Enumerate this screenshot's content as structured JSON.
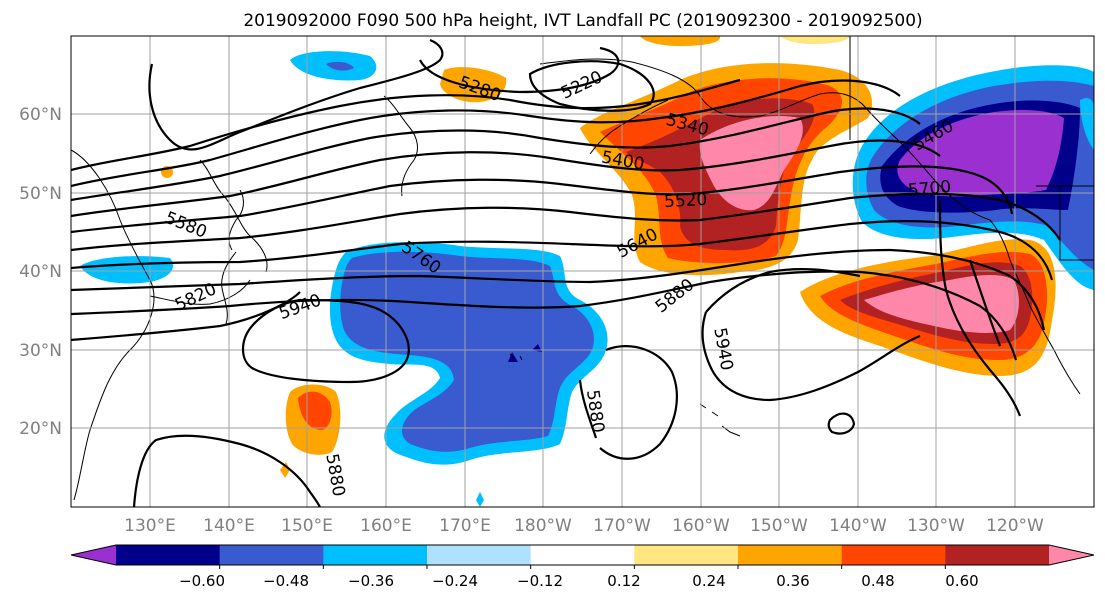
{
  "title": "2019092000 F090 500 hPa height, IVT Landfall PC (2019092300 - 2019092500)",
  "map": {
    "lon_ticks": [
      "130°E",
      "140°E",
      "150°E",
      "160°E",
      "170°E",
      "180°W",
      "170°W",
      "160°W",
      "150°W",
      "140°W",
      "130°W",
      "120°W"
    ],
    "lat_ticks": [
      "60°N",
      "50°N",
      "40°N",
      "30°N",
      "20°N"
    ],
    "gridlines": true,
    "contour_labels": [
      "5280",
      "5220",
      "5340",
      "5400",
      "5520",
      "5580",
      "5640",
      "5700",
      "5760",
      "5820",
      "5880",
      "5880",
      "5880",
      "5940",
      "5940",
      "5460"
    ]
  },
  "colorbar": {
    "tick_labels": [
      "−0.60",
      "−0.48",
      "−0.36",
      "−0.24",
      "−0.12",
      "0.12",
      "0.24",
      "0.36",
      "0.48",
      "0.60"
    ],
    "colors": [
      "#9b30d0",
      "#00008b",
      "#3a5bd0",
      "#00bfff",
      "#b0e0ff",
      "#ffffff",
      "#ffe680",
      "#ffa500",
      "#ff4500",
      "#b22222",
      "#ff88aa"
    ],
    "extend": "both"
  }
}
